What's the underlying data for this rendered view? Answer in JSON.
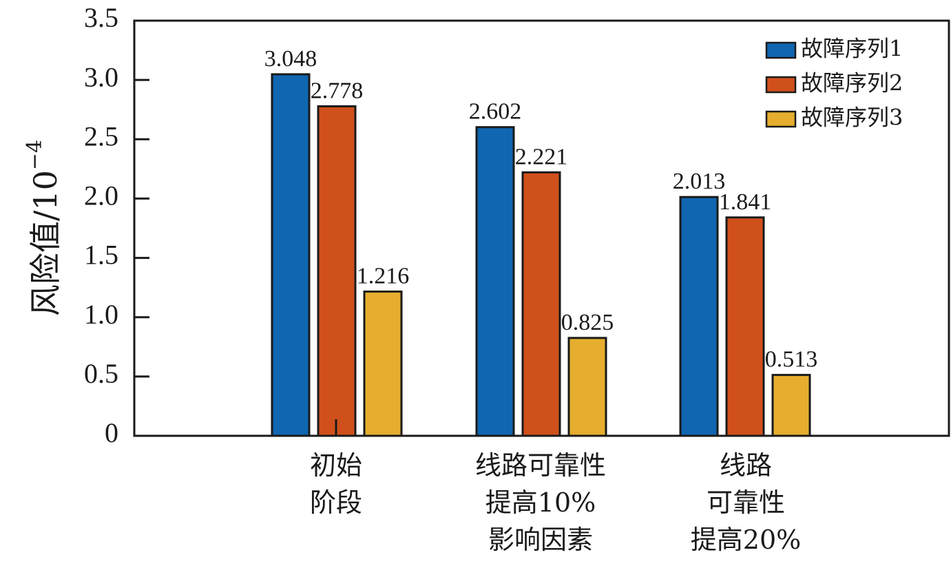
{
  "chart_data": {
    "type": "bar",
    "title": "",
    "xlabel": "",
    "ylabel": "风险值/10",
    "ylabel_exponent": "−4",
    "ylim": [
      0,
      3.5
    ],
    "yticks": [
      {
        "value": 0,
        "label": "0"
      },
      {
        "value": 0.5,
        "label": "0.5"
      },
      {
        "value": 1.0,
        "label": "1.0"
      },
      {
        "value": 1.5,
        "label": "1.5"
      },
      {
        "value": 2.0,
        "label": "2.0"
      },
      {
        "value": 2.5,
        "label": "2.5"
      },
      {
        "value": 3.0,
        "label": "3.0"
      },
      {
        "value": 3.5,
        "label": "3.5"
      }
    ],
    "categories": [
      [
        "初始",
        "阶段"
      ],
      [
        "线路可靠性",
        "提高10%",
        "影响因素"
      ],
      [
        "线路",
        "可靠性",
        "提高20%"
      ]
    ],
    "series": [
      {
        "name": "故障序列1",
        "color": "#1066b0",
        "values": [
          3.048,
          2.602,
          2.013
        ],
        "labels": [
          "3.048",
          "2.602",
          "2.013"
        ]
      },
      {
        "name": "故障序列2",
        "color": "#d0501c",
        "values": [
          2.778,
          2.221,
          1.841
        ],
        "labels": [
          "2.778",
          "2.221",
          "1.841"
        ]
      },
      {
        "name": "故障序列3",
        "color": "#e6ae2e",
        "values": [
          1.216,
          0.825,
          0.513
        ],
        "labels": [
          "1.216",
          "0.825",
          "0.513"
        ]
      }
    ],
    "grid": false,
    "legend": "top-right"
  }
}
